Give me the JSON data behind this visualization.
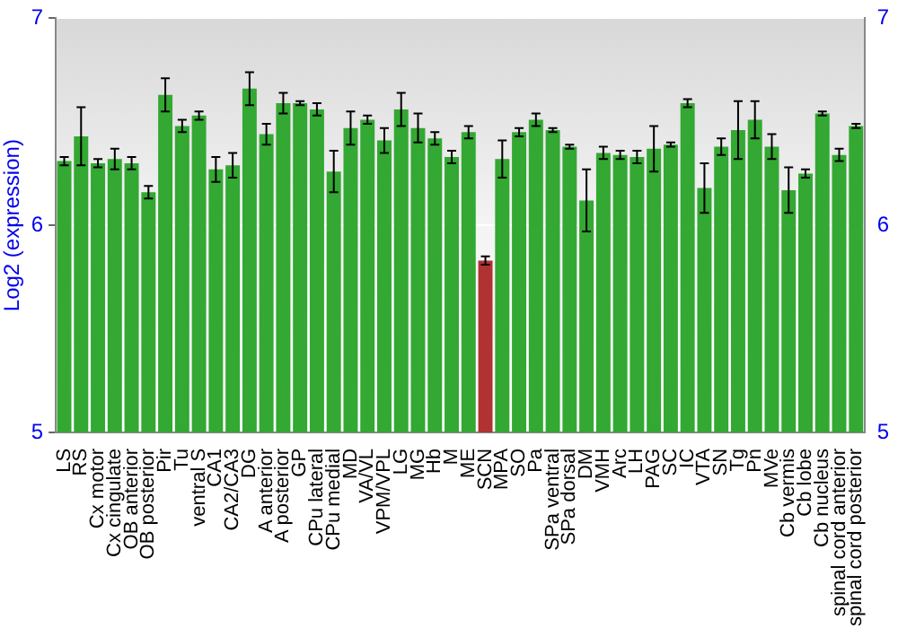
{
  "chart_data": {
    "type": "bar",
    "ylabel": "Log2 (expression)",
    "categories": [
      "LS",
      "RS",
      "Cx motor",
      "Cx cingulate",
      "OB anterior",
      "OB posterior",
      "Pir",
      "Tu",
      "ventral S",
      "CA1",
      "CA2/CA3",
      "DG",
      "A anterior",
      "A posterior",
      "GP",
      "CPu lateral",
      "CPu medial",
      "MD",
      "VA/VL",
      "VPM/VPL",
      "LG",
      "MG",
      "Hb",
      "M",
      "ME",
      "SCN",
      "MPA",
      "SO",
      "Pa",
      "SPa ventral",
      "SPa dorsal",
      "DM",
      "VMH",
      "Arc",
      "LH",
      "PAG",
      "SC",
      "IC",
      "VTA",
      "SN",
      "Tg",
      "Pn",
      "MVe",
      "Cb vermis",
      "Cb lobe",
      "Cb nucleus",
      "spinal cord anterior",
      "spinal cord posterior"
    ],
    "values": [
      6.31,
      6.43,
      6.3,
      6.32,
      6.3,
      6.16,
      6.63,
      6.48,
      6.53,
      6.27,
      6.29,
      6.66,
      6.44,
      6.59,
      6.59,
      6.56,
      6.26,
      6.47,
      6.51,
      6.41,
      6.56,
      6.47,
      6.42,
      6.33,
      6.45,
      5.83,
      6.32,
      6.45,
      6.51,
      6.46,
      6.38,
      6.12,
      6.35,
      6.34,
      6.33,
      6.37,
      6.39,
      6.59,
      6.18,
      6.38,
      6.46,
      6.51,
      6.38,
      6.17,
      6.25,
      6.54,
      6.34,
      6.48
    ],
    "errors": [
      0.02,
      0.14,
      0.02,
      0.05,
      0.03,
      0.03,
      0.08,
      0.03,
      0.02,
      0.06,
      0.06,
      0.08,
      0.05,
      0.05,
      0.01,
      0.03,
      0.1,
      0.08,
      0.02,
      0.06,
      0.08,
      0.07,
      0.03,
      0.03,
      0.03,
      0.02,
      0.09,
      0.02,
      0.03,
      0.01,
      0.01,
      0.15,
      0.03,
      0.02,
      0.03,
      0.11,
      0.01,
      0.02,
      0.12,
      0.04,
      0.14,
      0.09,
      0.06,
      0.11,
      0.02,
      0.01,
      0.03,
      0.01
    ],
    "colors": [
      "#33a833",
      "#33a833",
      "#33a833",
      "#33a833",
      "#33a833",
      "#33a833",
      "#33a833",
      "#33a833",
      "#33a833",
      "#33a833",
      "#33a833",
      "#33a833",
      "#33a833",
      "#33a833",
      "#33a833",
      "#33a833",
      "#33a833",
      "#33a833",
      "#33a833",
      "#33a833",
      "#33a833",
      "#33a833",
      "#33a833",
      "#33a833",
      "#33a833",
      "#b03232",
      "#33a833",
      "#33a833",
      "#33a833",
      "#33a833",
      "#33a833",
      "#33a833",
      "#33a833",
      "#33a833",
      "#33a833",
      "#33a833",
      "#33a833",
      "#33a833",
      "#33a833",
      "#33a833",
      "#33a833",
      "#33a833",
      "#33a833",
      "#33a833",
      "#33a833",
      "#33a833",
      "#33a833",
      "#33a833"
    ],
    "ylim": [
      5,
      7
    ],
    "yticks": [
      5,
      6,
      7
    ],
    "y2lim": [
      5,
      7
    ],
    "y2ticks": [
      5,
      6,
      7
    ],
    "grid": "y",
    "legend": false
  }
}
